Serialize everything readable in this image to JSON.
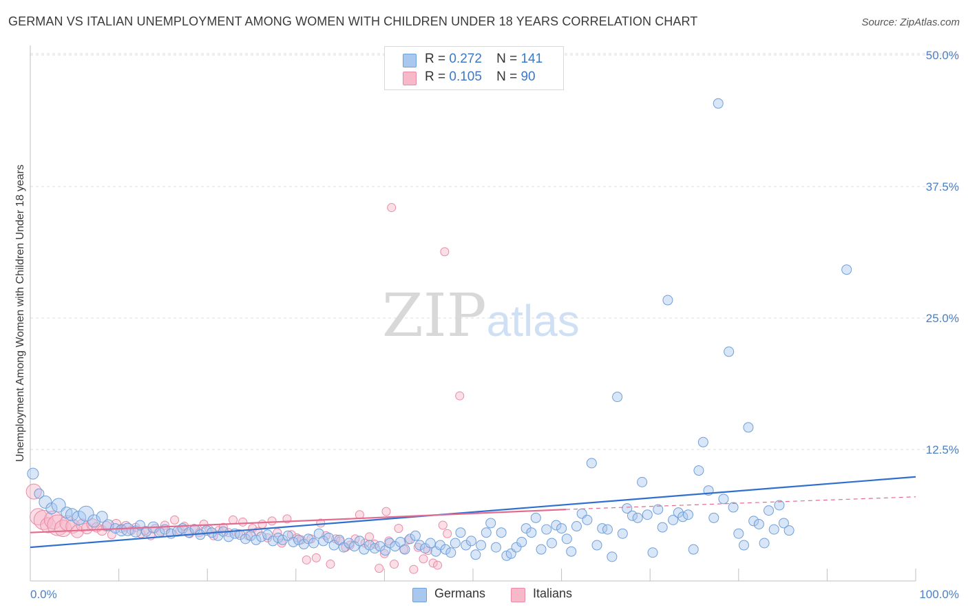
{
  "title": "GERMAN VS ITALIAN UNEMPLOYMENT AMONG WOMEN WITH CHILDREN UNDER 18 YEARS CORRELATION CHART",
  "source": "Source: ZipAtlas.com",
  "watermark": {
    "zip": "ZIP",
    "atlas": "atlas"
  },
  "legend": {
    "germans": {
      "r_label": "R =",
      "r_value": "0.272",
      "n_label": "N =",
      "n_value": "141"
    },
    "italians": {
      "r_label": "R =",
      "r_value": "0.105",
      "n_label": "N =",
      "n_value": "90"
    }
  },
  "colors": {
    "germans_fill": "#a9c8ef",
    "germans_stroke": "#6f9fd8",
    "germans_line": "#2f6fcd",
    "italians_fill": "#f7b8c9",
    "italians_stroke": "#e98aa5",
    "italians_line": "#e36b8e",
    "grid": "#dcdcdc",
    "axis_label": "#4a7fc4"
  },
  "chart_data": {
    "type": "scatter",
    "title": "GERMAN VS ITALIAN UNEMPLOYMENT AMONG WOMEN WITH CHILDREN UNDER 18 YEARS CORRELATION CHART",
    "xlabel": "",
    "ylabel": "Unemployment Among Women with Children Under 18 years",
    "xlim": [
      0,
      100
    ],
    "ylim": [
      0,
      50
    ],
    "x_tick_labels": [
      "0.0%",
      "100.0%"
    ],
    "y_ticks": [
      12.5,
      25.0,
      37.5,
      50.0
    ],
    "y_tick_labels": [
      "12.5%",
      "25.0%",
      "37.5%",
      "50.0%"
    ],
    "grid": "horizontal dashed",
    "legend_position": "top-center",
    "series": [
      {
        "name": "Germans",
        "r": 0.272,
        "n": 141,
        "trend": {
          "x": [
            0,
            100
          ],
          "y": [
            3.2,
            9.9
          ]
        },
        "points": [
          [
            0.3,
            10.2,
            7
          ],
          [
            1.0,
            8.3,
            6
          ],
          [
            1.7,
            7.5,
            8
          ],
          [
            2.4,
            6.9,
            7
          ],
          [
            3.2,
            7.2,
            9
          ],
          [
            4.1,
            6.5,
            7
          ],
          [
            4.7,
            6.3,
            8
          ],
          [
            5.5,
            6.0,
            9
          ],
          [
            6.3,
            6.4,
            10
          ],
          [
            7.2,
            5.7,
            8
          ],
          [
            8.1,
            6.1,
            7
          ],
          [
            8.8,
            5.3,
            7
          ],
          [
            9.6,
            5.0,
            6
          ],
          [
            10.3,
            4.8,
            7
          ],
          [
            11.0,
            4.9,
            8
          ],
          [
            11.9,
            4.7,
            7
          ],
          [
            12.4,
            5.3,
            6
          ],
          [
            13.1,
            4.7,
            6
          ],
          [
            13.9,
            5.1,
            7
          ],
          [
            14.6,
            4.6,
            6
          ],
          [
            15.2,
            4.9,
            6
          ],
          [
            15.9,
            4.5,
            6
          ],
          [
            16.6,
            4.7,
            6
          ],
          [
            17.2,
            5.0,
            6
          ],
          [
            17.9,
            4.6,
            6
          ],
          [
            18.6,
            4.9,
            6
          ],
          [
            19.2,
            4.4,
            6
          ],
          [
            19.9,
            4.8,
            6
          ],
          [
            20.5,
            4.6,
            6
          ],
          [
            21.2,
            4.3,
            6
          ],
          [
            21.8,
            4.7,
            6
          ],
          [
            22.4,
            4.2,
            6
          ],
          [
            23.1,
            4.5,
            6
          ],
          [
            23.7,
            4.4,
            6
          ],
          [
            24.3,
            4.0,
            6
          ],
          [
            24.9,
            4.3,
            6
          ],
          [
            25.5,
            3.9,
            6
          ],
          [
            26.1,
            4.2,
            6
          ],
          [
            26.8,
            4.4,
            6
          ],
          [
            27.4,
            3.8,
            6
          ],
          [
            28.0,
            4.1,
            6
          ],
          [
            28.5,
            3.9,
            6
          ],
          [
            29.1,
            4.3,
            6
          ],
          [
            29.7,
            3.7,
            6
          ],
          [
            30.3,
            3.9,
            6
          ],
          [
            30.9,
            3.5,
            6
          ],
          [
            31.4,
            4.0,
            6
          ],
          [
            32.0,
            3.6,
            6
          ],
          [
            32.6,
            4.5,
            6
          ],
          [
            33.1,
            3.8,
            6
          ],
          [
            33.7,
            4.1,
            6
          ],
          [
            34.3,
            3.4,
            6
          ],
          [
            34.9,
            3.9,
            6
          ],
          [
            35.4,
            3.2,
            6
          ],
          [
            36.0,
            3.6,
            6
          ],
          [
            36.6,
            3.3,
            6
          ],
          [
            37.2,
            3.8,
            6
          ],
          [
            37.7,
            3.0,
            6
          ],
          [
            38.3,
            3.4,
            6
          ],
          [
            38.9,
            3.1,
            6
          ],
          [
            39.5,
            3.3,
            6
          ],
          [
            40.1,
            2.9,
            6
          ],
          [
            40.6,
            3.6,
            6
          ],
          [
            41.2,
            3.3,
            6
          ],
          [
            41.8,
            3.7,
            6
          ],
          [
            42.3,
            3.0,
            6
          ],
          [
            42.9,
            4.0,
            6
          ],
          [
            43.5,
            4.3,
            6
          ],
          [
            44.0,
            3.4,
            6
          ],
          [
            44.6,
            3.1,
            6
          ],
          [
            45.2,
            3.6,
            6
          ],
          [
            45.8,
            2.8,
            6
          ],
          [
            46.3,
            3.4,
            6
          ],
          [
            46.9,
            3.0,
            6
          ],
          [
            47.5,
            2.7,
            6
          ],
          [
            48.0,
            3.6,
            6
          ],
          [
            48.6,
            4.6,
            6
          ],
          [
            49.2,
            3.4,
            6
          ],
          [
            49.8,
            3.8,
            6
          ],
          [
            50.3,
            2.5,
            6
          ],
          [
            50.9,
            3.4,
            6
          ],
          [
            51.5,
            4.6,
            6
          ],
          [
            52.0,
            5.5,
            6
          ],
          [
            52.6,
            3.2,
            6
          ],
          [
            53.2,
            4.6,
            6
          ],
          [
            53.8,
            2.4,
            6
          ],
          [
            54.3,
            2.6,
            6
          ],
          [
            54.9,
            3.2,
            6
          ],
          [
            55.5,
            3.7,
            6
          ],
          [
            56.0,
            5.0,
            6
          ],
          [
            56.6,
            4.6,
            6
          ],
          [
            57.1,
            6.0,
            6
          ],
          [
            57.7,
            3.0,
            6
          ],
          [
            58.3,
            4.9,
            6
          ],
          [
            58.9,
            3.6,
            6
          ],
          [
            59.4,
            5.3,
            6
          ],
          [
            60.0,
            5.0,
            6
          ],
          [
            60.6,
            4.0,
            6
          ],
          [
            61.1,
            2.8,
            6
          ],
          [
            61.7,
            5.2,
            6
          ],
          [
            62.3,
            6.4,
            6
          ],
          [
            62.9,
            5.8,
            6
          ],
          [
            63.4,
            11.2,
            6
          ],
          [
            64.0,
            3.4,
            6
          ],
          [
            64.6,
            5.0,
            6
          ],
          [
            65.2,
            4.9,
            6
          ],
          [
            65.7,
            2.3,
            6
          ],
          [
            66.3,
            17.5,
            6
          ],
          [
            66.9,
            4.5,
            6
          ],
          [
            67.4,
            6.9,
            6
          ],
          [
            68.0,
            6.2,
            6
          ],
          [
            68.6,
            6.0,
            6
          ],
          [
            69.1,
            9.4,
            6
          ],
          [
            69.7,
            6.3,
            6
          ],
          [
            70.3,
            2.7,
            6
          ],
          [
            70.9,
            6.8,
            6
          ],
          [
            71.4,
            5.1,
            6
          ],
          [
            72.0,
            26.7,
            6
          ],
          [
            72.6,
            5.8,
            6
          ],
          [
            73.2,
            6.5,
            6
          ],
          [
            73.7,
            6.1,
            6
          ],
          [
            74.3,
            6.3,
            6
          ],
          [
            74.9,
            3.0,
            6
          ],
          [
            75.5,
            10.5,
            6
          ],
          [
            76.0,
            13.2,
            6
          ],
          [
            76.6,
            8.6,
            6
          ],
          [
            77.2,
            6.0,
            6
          ],
          [
            77.7,
            45.4,
            6
          ],
          [
            78.3,
            7.8,
            6
          ],
          [
            78.9,
            21.8,
            6
          ],
          [
            79.4,
            7.0,
            6
          ],
          [
            80.0,
            4.5,
            6
          ],
          [
            80.6,
            3.4,
            6
          ],
          [
            81.1,
            14.6,
            6
          ],
          [
            81.7,
            5.7,
            6
          ],
          [
            82.3,
            5.4,
            6
          ],
          [
            82.9,
            3.6,
            6
          ],
          [
            83.4,
            6.7,
            6
          ],
          [
            84.0,
            4.9,
            6
          ],
          [
            84.6,
            7.2,
            6
          ],
          [
            85.1,
            5.5,
            6
          ],
          [
            85.7,
            4.8,
            6
          ],
          [
            92.2,
            29.6,
            6
          ]
        ]
      },
      {
        "name": "Italians",
        "r": 0.105,
        "n": 90,
        "trend": {
          "x": [
            0,
            60.5
          ],
          "y": [
            4.6,
            6.8
          ]
        },
        "trend_dashed": {
          "x": [
            60.5,
            100
          ],
          "y": [
            6.8,
            8.0
          ]
        },
        "points": [
          [
            0.4,
            8.5,
            11
          ],
          [
            0.9,
            6.1,
            12
          ],
          [
            1.5,
            5.8,
            14
          ],
          [
            2.0,
            5.3,
            11
          ],
          [
            2.6,
            5.8,
            13
          ],
          [
            3.1,
            5.3,
            15
          ],
          [
            3.7,
            5.0,
            12
          ],
          [
            4.2,
            5.5,
            11
          ],
          [
            4.8,
            5.2,
            10
          ],
          [
            5.3,
            4.7,
            9
          ],
          [
            5.9,
            5.3,
            9
          ],
          [
            6.4,
            5.0,
            8
          ],
          [
            7.0,
            5.4,
            8
          ],
          [
            7.5,
            5.1,
            7
          ],
          [
            8.1,
            4.8,
            7
          ],
          [
            8.6,
            5.2,
            7
          ],
          [
            9.2,
            4.4,
            6
          ],
          [
            9.7,
            5.4,
            7
          ],
          [
            10.3,
            5.0,
            6
          ],
          [
            10.8,
            5.2,
            7
          ],
          [
            11.4,
            4.8,
            6
          ],
          [
            11.9,
            5.1,
            6
          ],
          [
            12.5,
            4.5,
            6
          ],
          [
            13.0,
            4.8,
            6
          ],
          [
            13.6,
            4.3,
            6
          ],
          [
            14.1,
            5.0,
            6
          ],
          [
            14.7,
            4.7,
            6
          ],
          [
            15.2,
            5.3,
            6
          ],
          [
            15.8,
            4.6,
            6
          ],
          [
            16.3,
            5.8,
            6
          ],
          [
            16.9,
            4.8,
            6
          ],
          [
            17.4,
            5.2,
            6
          ],
          [
            18.0,
            4.5,
            6
          ],
          [
            18.5,
            5.0,
            6
          ],
          [
            19.1,
            4.6,
            6
          ],
          [
            19.6,
            5.4,
            6
          ],
          [
            20.2,
            4.9,
            6
          ],
          [
            20.7,
            4.3,
            6
          ],
          [
            21.3,
            4.8,
            6
          ],
          [
            21.8,
            5.1,
            6
          ],
          [
            22.4,
            4.6,
            6
          ],
          [
            22.9,
            5.8,
            6
          ],
          [
            23.5,
            4.5,
            6
          ],
          [
            24.0,
            5.6,
            6
          ],
          [
            24.6,
            4.3,
            6
          ],
          [
            25.1,
            5.0,
            6
          ],
          [
            25.7,
            4.7,
            6
          ],
          [
            26.2,
            5.4,
            6
          ],
          [
            26.8,
            4.1,
            6
          ],
          [
            27.3,
            5.7,
            6
          ],
          [
            27.9,
            4.6,
            6
          ],
          [
            28.4,
            3.6,
            6
          ],
          [
            29.0,
            5.9,
            6
          ],
          [
            29.5,
            4.4,
            6
          ],
          [
            30.1,
            4.1,
            6
          ],
          [
            30.6,
            3.9,
            6
          ],
          [
            31.2,
            2.0,
            6
          ],
          [
            31.7,
            4.0,
            6
          ],
          [
            32.3,
            2.2,
            6
          ],
          [
            32.8,
            5.5,
            6
          ],
          [
            33.4,
            4.3,
            6
          ],
          [
            33.9,
            1.6,
            6
          ],
          [
            34.5,
            4.0,
            6
          ],
          [
            35.0,
            3.8,
            6
          ],
          [
            35.6,
            3.2,
            6
          ],
          [
            36.1,
            3.4,
            6
          ],
          [
            36.7,
            4.0,
            6
          ],
          [
            37.2,
            6.3,
            6
          ],
          [
            37.8,
            3.6,
            6
          ],
          [
            38.3,
            4.2,
            6
          ],
          [
            38.9,
            3.5,
            6
          ],
          [
            39.4,
            1.2,
            6
          ],
          [
            40.0,
            2.6,
            6
          ],
          [
            40.5,
            3.8,
            6
          ],
          [
            41.1,
            1.6,
            6
          ],
          [
            41.6,
            5.0,
            6
          ],
          [
            42.2,
            3.0,
            6
          ],
          [
            42.7,
            3.9,
            6
          ],
          [
            43.3,
            1.1,
            6
          ],
          [
            43.8,
            3.2,
            6
          ],
          [
            44.4,
            2.1,
            6
          ],
          [
            44.9,
            2.9,
            6
          ],
          [
            45.5,
            1.7,
            6
          ],
          [
            46.0,
            1.5,
            6
          ],
          [
            46.6,
            5.3,
            6
          ],
          [
            47.1,
            4.5,
            6
          ],
          [
            40.2,
            6.6,
            6
          ],
          [
            40.8,
            35.5,
            6
          ],
          [
            46.8,
            31.3,
            6
          ],
          [
            48.5,
            17.6,
            6
          ]
        ]
      }
    ]
  },
  "bottom_legend": {
    "germans": "Germans",
    "italians": "Italians"
  }
}
